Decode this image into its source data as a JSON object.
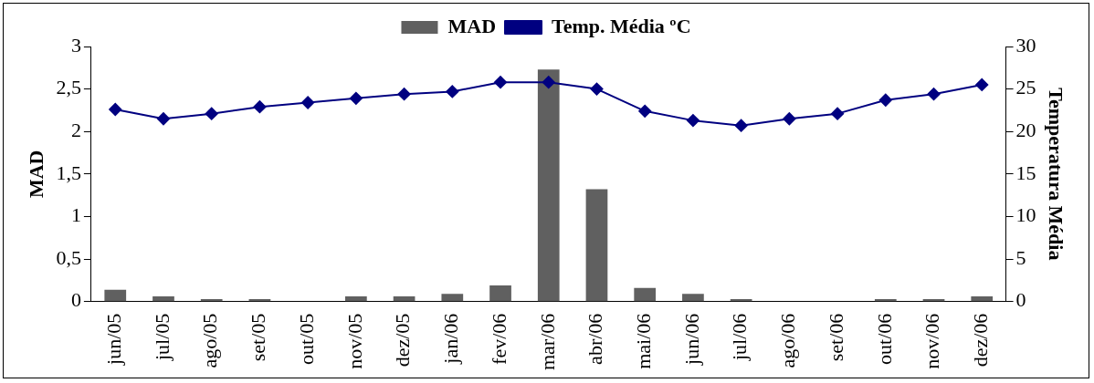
{
  "chart_data": {
    "type": "bar",
    "categories": [
      "jun/05",
      "jul/05",
      "ago/05",
      "set/05",
      "out/05",
      "nov/05",
      "dez/05",
      "jan/06",
      "fev/06",
      "mar/06",
      "abr/06",
      "mai/06",
      "jun/06",
      "jul/06",
      "ago/06",
      "set/06",
      "out/06",
      "nov/06",
      "dez/06"
    ],
    "series": [
      {
        "name": "MAD",
        "color": "#606060",
        "values": [
          0.14,
          0.06,
          0.03,
          0.03,
          0,
          0.06,
          0.06,
          0.09,
          0.19,
          2.73,
          1.32,
          0.16,
          0.09,
          0.03,
          0,
          0,
          0.03,
          0.03,
          0.06
        ]
      },
      {
        "name": "Temp. Média ºC",
        "type": "line",
        "axis": "y2",
        "color": "#000080",
        "marker": "diamond",
        "values": [
          22.6,
          21.5,
          22.1,
          22.9,
          23.4,
          23.9,
          24.4,
          24.7,
          25.8,
          25.8,
          25.0,
          22.4,
          21.3,
          20.7,
          21.5,
          22.1,
          23.7,
          24.4,
          25.5
        ]
      }
    ],
    "ylabel": "MAD",
    "y2label": "Temperatura Média",
    "ylim": [
      0,
      3
    ],
    "yticks": [
      0,
      {
        "value": 0.5,
        "label": "0,5"
      },
      1,
      {
        "value": 1.5,
        "label": "1,5"
      },
      2,
      {
        "value": 2.5,
        "label": "2,5"
      },
      3
    ],
    "y2lim": [
      0,
      30
    ],
    "y2ticks": [
      0,
      5,
      10,
      15,
      20,
      25,
      30
    ],
    "legend": "top",
    "grid": false
  }
}
